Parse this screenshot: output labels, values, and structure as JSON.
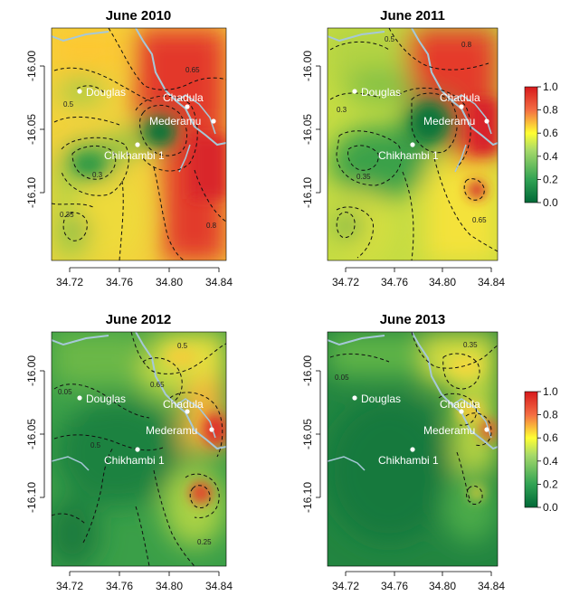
{
  "chart_data": [
    {
      "type": "heatmap",
      "title": "June 2010",
      "xlim": [
        34.7,
        34.845
      ],
      "ylim": [
        -16.145,
        -15.955
      ],
      "x_ticks": [
        "34.72",
        "34.76",
        "34.80",
        "34.84"
      ],
      "y_ticks": [
        "-16.00",
        "-16.05",
        "-16.10"
      ],
      "sites": [
        {
          "name": "Douglas",
          "lon": 34.728,
          "lat": -16.012
        },
        {
          "name": "Chadula",
          "lon": 34.815,
          "lat": -16.023
        },
        {
          "name": "Mederamu",
          "lon": 34.835,
          "lat": -16.034
        },
        {
          "name": "Chikhambi 1",
          "lon": 34.775,
          "lat": -16.052
        }
      ],
      "contour_labels": [
        "0.65",
        "0.5",
        "0.3",
        "0.35",
        "0.8"
      ]
    },
    {
      "type": "heatmap",
      "title": "June 2011",
      "xlim": [
        34.7,
        34.845
      ],
      "ylim": [
        -16.145,
        -15.955
      ],
      "x_ticks": [
        "34.72",
        "34.76",
        "34.80",
        "34.84"
      ],
      "y_ticks": [
        "-16.00",
        "-16.05",
        "-16.10"
      ],
      "sites": [
        {
          "name": "Douglas",
          "lon": 34.728,
          "lat": -16.012
        },
        {
          "name": "Chadula",
          "lon": 34.815,
          "lat": -16.023
        },
        {
          "name": "Mederamu",
          "lon": 34.835,
          "lat": -16.034
        },
        {
          "name": "Chikhambi 1",
          "lon": 34.775,
          "lat": -16.052
        }
      ],
      "contour_labels": [
        "0.5",
        "0.8",
        "0.3",
        "0.35",
        "0.65"
      ]
    },
    {
      "type": "heatmap",
      "title": "June 2012",
      "xlim": [
        34.7,
        34.845
      ],
      "ylim": [
        -16.145,
        -15.955
      ],
      "x_ticks": [
        "34.72",
        "34.76",
        "34.80",
        "34.84"
      ],
      "y_ticks": [
        "-16.00",
        "-16.05",
        "-16.10"
      ],
      "sites": [
        {
          "name": "Douglas",
          "lon": 34.728,
          "lat": -16.012
        },
        {
          "name": "Chadula",
          "lon": 34.815,
          "lat": -16.023
        },
        {
          "name": "Mederamu",
          "lon": 34.835,
          "lat": -16.034
        },
        {
          "name": "Chikhambi 1",
          "lon": 34.775,
          "lat": -16.052
        }
      ],
      "contour_labels": [
        "0.5",
        "0.65",
        "0.05",
        "0.25"
      ]
    },
    {
      "type": "heatmap",
      "title": "June 2013",
      "xlim": [
        34.7,
        34.845
      ],
      "ylim": [
        -16.145,
        -15.955
      ],
      "x_ticks": [
        "34.72",
        "34.76",
        "34.80",
        "34.84"
      ],
      "y_ticks": [
        "-16.00",
        "-16.05",
        "-16.10"
      ],
      "sites": [
        {
          "name": "Douglas",
          "lon": 34.728,
          "lat": -16.012
        },
        {
          "name": "Chadula",
          "lon": 34.815,
          "lat": -16.023
        },
        {
          "name": "Mederamu",
          "lon": 34.835,
          "lat": -16.034
        },
        {
          "name": "Chikhambi 1",
          "lon": 34.775,
          "lat": -16.052
        }
      ],
      "contour_labels": [
        "0.35",
        "0.05"
      ]
    }
  ],
  "legend": {
    "ticks": [
      "1.0",
      "0.8",
      "0.6",
      "0.4",
      "0.2",
      "0.0"
    ],
    "colors": [
      "#006837",
      "#1a9641",
      "#7fc241",
      "#ffff33",
      "#fdae61",
      "#f46d43",
      "#d7191c"
    ]
  }
}
